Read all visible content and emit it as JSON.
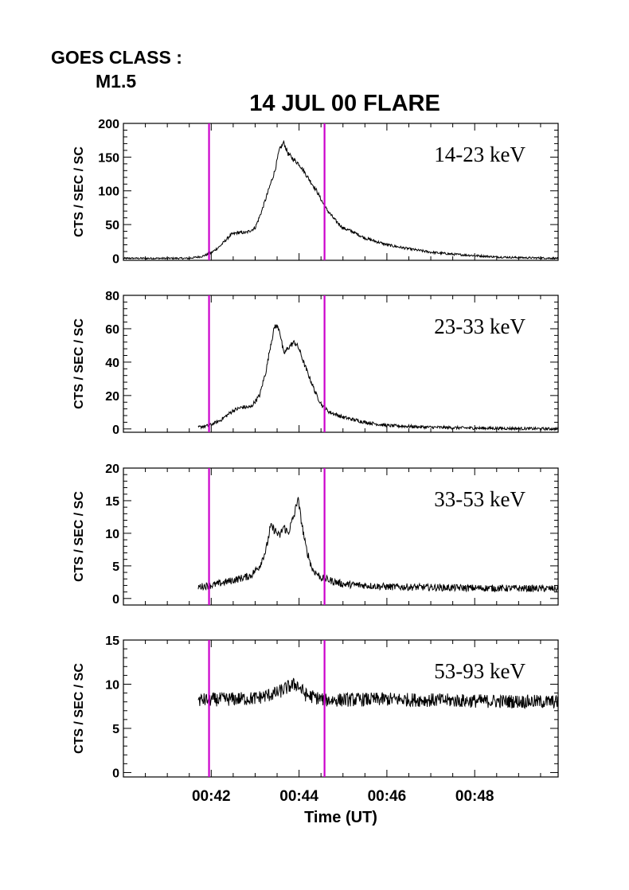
{
  "header": {
    "goes_label": "GOES CLASS :",
    "goes_class": "M1.5",
    "title": "14 JUL 00 FLARE"
  },
  "colors": {
    "marker": "#cc00cc",
    "trace": "#000000"
  },
  "chart_data": {
    "type": "line",
    "xlabel": "Time (UT)",
    "x_range_minutes_after_0040": [
      0.0,
      9.9
    ],
    "x_tick_labels": [
      "00:42",
      "00:44",
      "00:46",
      "00:48"
    ],
    "x_tick_values_minutes_after_0040": [
      2,
      4,
      6,
      8
    ],
    "vertical_markers_minutes_after_0040": [
      1.95,
      4.58
    ],
    "panels": [
      {
        "band": "14-23 keV",
        "ylabel": "CTS / SEC / SC",
        "ylim": [
          -3,
          200
        ],
        "yticks": [
          0,
          50,
          100,
          150,
          200
        ],
        "data_start": 0.0,
        "noise": 1.2,
        "curve": [
          [
            0.0,
            0
          ],
          [
            1.5,
            0
          ],
          [
            1.8,
            3
          ],
          [
            2.0,
            8
          ],
          [
            2.2,
            18
          ],
          [
            2.45,
            35
          ],
          [
            2.6,
            38
          ],
          [
            2.8,
            38
          ],
          [
            3.0,
            45
          ],
          [
            3.15,
            70
          ],
          [
            3.3,
            100
          ],
          [
            3.45,
            130
          ],
          [
            3.55,
            160
          ],
          [
            3.65,
            172
          ],
          [
            3.75,
            155
          ],
          [
            3.9,
            145
          ],
          [
            4.0,
            140
          ],
          [
            4.2,
            120
          ],
          [
            4.4,
            100
          ],
          [
            4.6,
            75
          ],
          [
            4.8,
            58
          ],
          [
            5.0,
            45
          ],
          [
            5.2,
            40
          ],
          [
            5.5,
            30
          ],
          [
            6.0,
            20
          ],
          [
            6.5,
            14
          ],
          [
            7.0,
            9
          ],
          [
            7.5,
            6
          ],
          [
            8.0,
            4
          ],
          [
            8.5,
            2
          ],
          [
            9.0,
            1
          ],
          [
            9.9,
            0
          ]
        ]
      },
      {
        "band": "23-33 keV",
        "ylabel": "CTS / SEC / SC",
        "ylim": [
          -2,
          80
        ],
        "yticks": [
          0,
          20,
          40,
          60,
          80
        ],
        "data_start": 1.7,
        "noise": 0.8,
        "curve": [
          [
            1.7,
            1
          ],
          [
            1.95,
            2
          ],
          [
            2.2,
            5
          ],
          [
            2.5,
            11
          ],
          [
            2.7,
            13
          ],
          [
            2.9,
            13
          ],
          [
            3.1,
            20
          ],
          [
            3.25,
            35
          ],
          [
            3.35,
            50
          ],
          [
            3.45,
            62
          ],
          [
            3.55,
            60
          ],
          [
            3.65,
            45
          ],
          [
            3.8,
            50
          ],
          [
            3.9,
            52
          ],
          [
            4.0,
            48
          ],
          [
            4.1,
            40
          ],
          [
            4.25,
            30
          ],
          [
            4.4,
            20
          ],
          [
            4.55,
            13
          ],
          [
            4.7,
            10
          ],
          [
            5.0,
            7
          ],
          [
            5.5,
            4
          ],
          [
            6.0,
            2
          ],
          [
            7.0,
            1
          ],
          [
            8.0,
            0.5
          ],
          [
            9.9,
            0
          ]
        ]
      },
      {
        "band": "33-53 keV",
        "ylabel": "CTS / SEC / SC",
        "ylim": [
          -1,
          20
        ],
        "yticks": [
          0,
          5,
          10,
          15,
          20
        ],
        "data_start": 1.7,
        "noise": 0.45,
        "curve": [
          [
            1.7,
            1.8
          ],
          [
            2.0,
            2
          ],
          [
            2.5,
            2.8
          ],
          [
            2.9,
            3.5
          ],
          [
            3.1,
            5
          ],
          [
            3.25,
            7.5
          ],
          [
            3.35,
            11
          ],
          [
            3.45,
            10.5
          ],
          [
            3.55,
            9.5
          ],
          [
            3.65,
            11
          ],
          [
            3.75,
            10
          ],
          [
            3.9,
            13
          ],
          [
            3.97,
            15.5
          ],
          [
            4.05,
            12
          ],
          [
            4.15,
            8
          ],
          [
            4.3,
            4.5
          ],
          [
            4.5,
            3.2
          ],
          [
            5.0,
            2.2
          ],
          [
            6.0,
            1.8
          ],
          [
            8.0,
            1.6
          ],
          [
            9.9,
            1.5
          ]
        ]
      },
      {
        "band": "53-93 keV",
        "ylabel": "CTS / SEC / SC",
        "ylim": [
          -0.5,
          15
        ],
        "yticks": [
          0,
          5,
          10,
          15
        ],
        "data_start": 1.7,
        "noise": 0.55,
        "curve": [
          [
            1.7,
            8.2
          ],
          [
            3.0,
            8.4
          ],
          [
            3.5,
            9.0
          ],
          [
            3.8,
            9.8
          ],
          [
            3.95,
            10.0
          ],
          [
            4.15,
            8.8
          ],
          [
            4.6,
            8.2
          ],
          [
            6.0,
            8.3
          ],
          [
            8.0,
            8.1
          ],
          [
            9.9,
            8.0
          ]
        ]
      }
    ]
  }
}
